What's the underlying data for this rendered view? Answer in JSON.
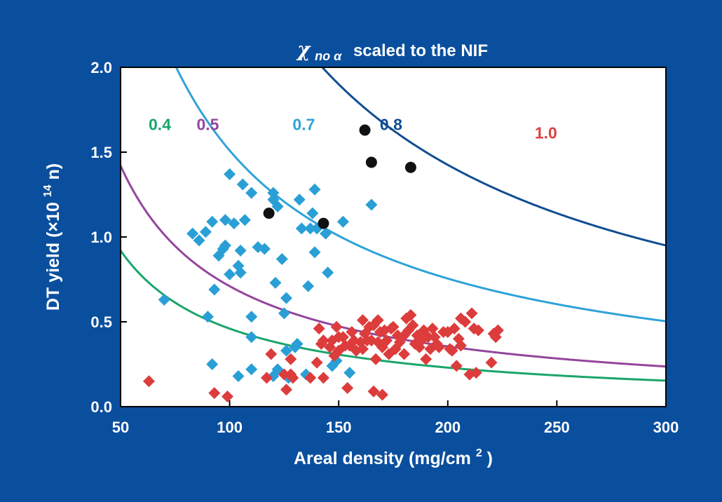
{
  "colors": {
    "background": "#0a4f9e",
    "plot_background": "#ffffff",
    "curve_0_4": "#1aa56a",
    "curve_0_5": "#93469c",
    "curve_0_7": "#2ea3d8",
    "curve_0_8": "#114d93",
    "curve_1_0": "#d94141",
    "series_blue": "#2a9fd6",
    "series_red": "#dd3c3c",
    "series_black": "#111111"
  },
  "chart_data": {
    "type": "scatter",
    "title": {
      "symbol": "χ",
      "subscript": "no α",
      "rest": "scaled to the NIF"
    },
    "xlabel": "Areal density (mg/cm",
    "xlabel_sup": "2",
    "xlabel_end": ")",
    "ylabel": "DT yield (×10",
    "ylabel_sup": "14",
    "ylabel_end": " n)",
    "xlim": [
      50,
      300
    ],
    "ylim": [
      0,
      2.0
    ],
    "x_ticks": [
      50,
      100,
      150,
      200,
      250,
      300
    ],
    "x_tick_labels": [
      "50",
      "100",
      "150",
      "200",
      "250",
      "300"
    ],
    "y_ticks": [
      0,
      0.5,
      1.0,
      1.5,
      2.0
    ],
    "y_tick_labels": [
      "0.0",
      "0.5",
      "1.0",
      "1.5",
      "2.0"
    ],
    "grid": false,
    "curves": [
      {
        "label": "0.4",
        "k": 46,
        "color": "#1aa56a",
        "label_x": 68,
        "label_y": 1.63
      },
      {
        "label": "0.5",
        "k": 71,
        "color": "#93469c",
        "label_x": 90,
        "label_y": 1.63
      },
      {
        "label": "0.7",
        "k": 151,
        "color": "#2ea3d8",
        "label_x": 134,
        "label_y": 1.63
      },
      {
        "label": "0.8",
        "k": 285,
        "color": "#114d93",
        "label_x": 174,
        "label_y": 1.63
      },
      {
        "label": "1.0",
        "k": 644,
        "color": "#d94141",
        "label_x": 245,
        "label_y": 1.58
      }
    ],
    "series": [
      {
        "marker": "diamond",
        "color": "#2a9fd6",
        "points": [
          [
            70,
            0.63
          ],
          [
            83,
            1.02
          ],
          [
            86,
            0.98
          ],
          [
            89,
            1.03
          ],
          [
            90,
            0.53
          ],
          [
            92,
            1.09
          ],
          [
            92,
            0.25
          ],
          [
            93,
            0.69
          ],
          [
            95,
            0.89
          ],
          [
            97,
            0.93
          ],
          [
            98,
            1.1
          ],
          [
            98,
            0.95
          ],
          [
            100,
            1.37
          ],
          [
            100,
            0.78
          ],
          [
            102,
            1.08
          ],
          [
            104,
            0.83
          ],
          [
            104,
            0.18
          ],
          [
            105,
            0.79
          ],
          [
            105,
            0.92
          ],
          [
            106,
            1.31
          ],
          [
            107,
            1.1
          ],
          [
            110,
            0.53
          ],
          [
            110,
            0.41
          ],
          [
            110,
            0.22
          ],
          [
            110,
            1.26
          ],
          [
            113,
            0.94
          ],
          [
            116,
            0.93
          ],
          [
            120,
            1.22
          ],
          [
            120,
            0.18
          ],
          [
            120,
            1.26
          ],
          [
            121,
            0.73
          ],
          [
            122,
            0.22
          ],
          [
            122,
            1.18
          ],
          [
            124,
            0.87
          ],
          [
            125,
            0.55
          ],
          [
            126,
            0.64
          ],
          [
            126,
            0.33
          ],
          [
            127,
            0.17
          ],
          [
            130,
            0.35
          ],
          [
            131,
            0.37
          ],
          [
            132,
            1.22
          ],
          [
            133,
            1.05
          ],
          [
            135,
            0.19
          ],
          [
            136,
            0.71
          ],
          [
            137,
            1.05
          ],
          [
            138,
            1.14
          ],
          [
            139,
            0.91
          ],
          [
            139,
            1.28
          ],
          [
            140,
            1.05
          ],
          [
            144,
            1.02
          ],
          [
            145,
            0.79
          ],
          [
            147,
            0.24
          ],
          [
            149,
            0.27
          ],
          [
            152,
            1.09
          ],
          [
            155,
            0.2
          ],
          [
            165,
            1.19
          ]
        ]
      },
      {
        "marker": "diamond",
        "color": "#dd3c3c",
        "points": [
          [
            63,
            0.15
          ],
          [
            93,
            0.08
          ],
          [
            99,
            0.06
          ],
          [
            117,
            0.17
          ],
          [
            119,
            0.31
          ],
          [
            125,
            0.19
          ],
          [
            126,
            0.1
          ],
          [
            128,
            0.19
          ],
          [
            128,
            0.28
          ],
          [
            129,
            0.17
          ],
          [
            137,
            0.17
          ],
          [
            140,
            0.26
          ],
          [
            141,
            0.46
          ],
          [
            142,
            0.37
          ],
          [
            143,
            0.39
          ],
          [
            143,
            0.17
          ],
          [
            146,
            0.35
          ],
          [
            147,
            0.39
          ],
          [
            148,
            0.3
          ],
          [
            149,
            0.47
          ],
          [
            150,
            0.41
          ],
          [
            150,
            0.33
          ],
          [
            152,
            0.41
          ],
          [
            153,
            0.36
          ],
          [
            154,
            0.11
          ],
          [
            155,
            0.36
          ],
          [
            156,
            0.44
          ],
          [
            157,
            0.39
          ],
          [
            158,
            0.33
          ],
          [
            160,
            0.38
          ],
          [
            161,
            0.51
          ],
          [
            161,
            0.34
          ],
          [
            162,
            0.43
          ],
          [
            163,
            0.39
          ],
          [
            164,
            0.47
          ],
          [
            165,
            0.39
          ],
          [
            166,
            0.09
          ],
          [
            166,
            0.48
          ],
          [
            167,
            0.28
          ],
          [
            168,
            0.51
          ],
          [
            168,
            0.38
          ],
          [
            169,
            0.44
          ],
          [
            170,
            0.07
          ],
          [
            170,
            0.35
          ],
          [
            171,
            0.45
          ],
          [
            172,
            0.39
          ],
          [
            173,
            0.31
          ],
          [
            174,
            0.46
          ],
          [
            175,
            0.47
          ],
          [
            176,
            0.34
          ],
          [
            177,
            0.42
          ],
          [
            178,
            0.38
          ],
          [
            180,
            0.42
          ],
          [
            180,
            0.31
          ],
          [
            181,
            0.52
          ],
          [
            182,
            0.45
          ],
          [
            183,
            0.54
          ],
          [
            184,
            0.48
          ],
          [
            185,
            0.37
          ],
          [
            186,
            0.42
          ],
          [
            187,
            0.35
          ],
          [
            188,
            0.39
          ],
          [
            189,
            0.45
          ],
          [
            190,
            0.28
          ],
          [
            191,
            0.41
          ],
          [
            192,
            0.34
          ],
          [
            193,
            0.46
          ],
          [
            194,
            0.41
          ],
          [
            195,
            0.37
          ],
          [
            196,
            0.35
          ],
          [
            198,
            0.44
          ],
          [
            200,
            0.44
          ],
          [
            201,
            0.34
          ],
          [
            202,
            0.33
          ],
          [
            203,
            0.46
          ],
          [
            204,
            0.24
          ],
          [
            205,
            0.4
          ],
          [
            206,
            0.36
          ],
          [
            206,
            0.52
          ],
          [
            208,
            0.5
          ],
          [
            210,
            0.19
          ],
          [
            211,
            0.55
          ],
          [
            212,
            0.46
          ],
          [
            213,
            0.2
          ],
          [
            214,
            0.45
          ],
          [
            220,
            0.26
          ],
          [
            221,
            0.43
          ],
          [
            222,
            0.41
          ],
          [
            223,
            0.45
          ]
        ]
      },
      {
        "marker": "circle",
        "color": "#111111",
        "points": [
          [
            118,
            1.14
          ],
          [
            143,
            1.08
          ],
          [
            162,
            1.63
          ],
          [
            165,
            1.44
          ],
          [
            183,
            1.41
          ]
        ]
      }
    ]
  }
}
